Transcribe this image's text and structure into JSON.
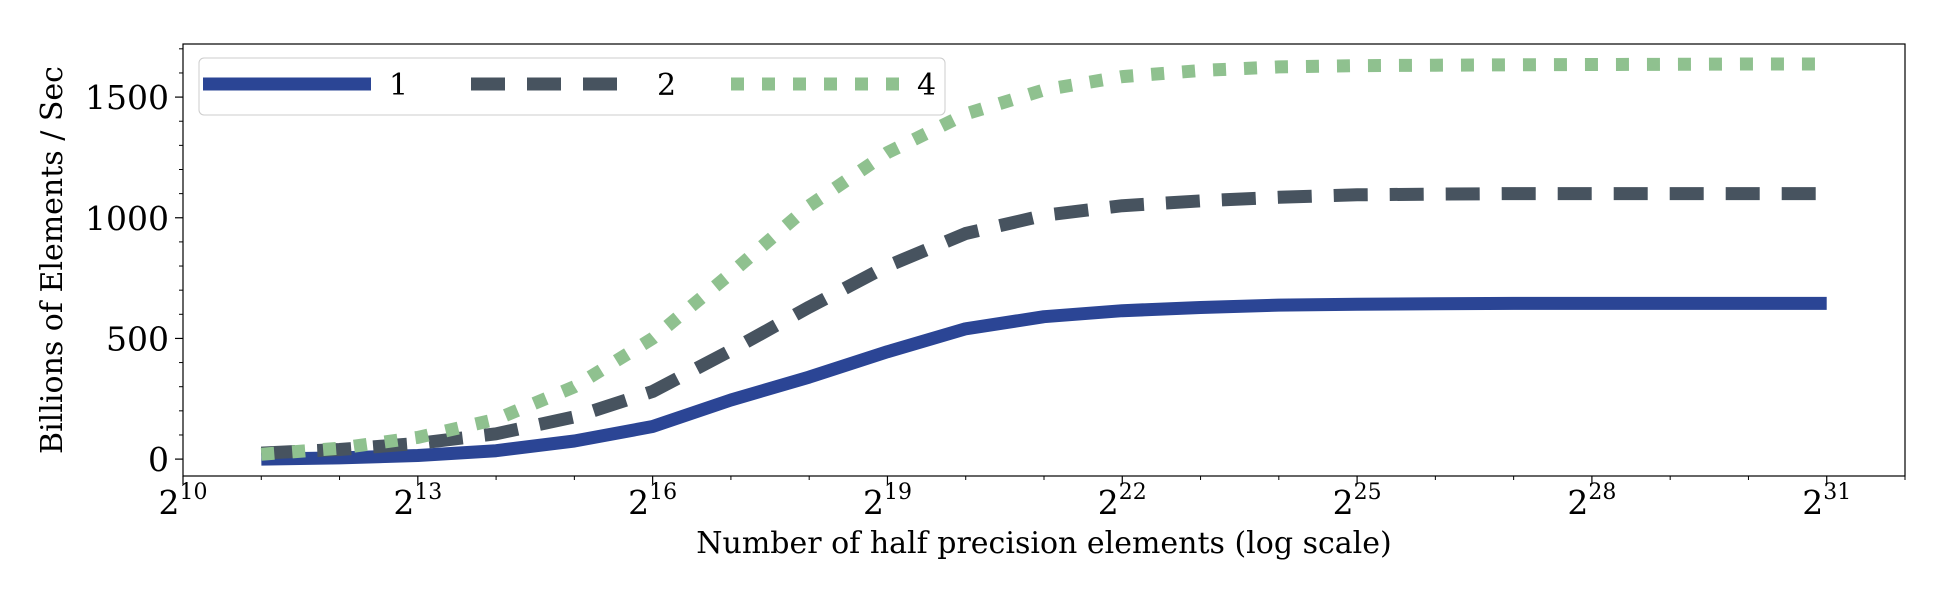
{
  "chart_data": {
    "type": "line",
    "xlabel": "Number of half precision elements (log scale)",
    "ylabel": "Billions of Elements / Sec",
    "x_scale": "log2",
    "xlim": [
      10,
      32
    ],
    "ylim": [
      -70,
      1720
    ],
    "x_ticks": [
      {
        "base": "2",
        "exp": "10",
        "value": 10
      },
      {
        "base": "2",
        "exp": "13",
        "value": 13
      },
      {
        "base": "2",
        "exp": "16",
        "value": 16
      },
      {
        "base": "2",
        "exp": "19",
        "value": 19
      },
      {
        "base": "2",
        "exp": "22",
        "value": 22
      },
      {
        "base": "2",
        "exp": "25",
        "value": 25
      },
      {
        "base": "2",
        "exp": "28",
        "value": 28
      },
      {
        "base": "2",
        "exp": "31",
        "value": 31
      }
    ],
    "y_ticks": [
      {
        "label": "0",
        "value": 0
      },
      {
        "label": "500",
        "value": 500
      },
      {
        "label": "1000",
        "value": 1000
      },
      {
        "label": "1500",
        "value": 1500
      }
    ],
    "grid": false,
    "legend": {
      "placement": "top-left",
      "columns": 3
    },
    "x": [
      11,
      12,
      13,
      14,
      15,
      16,
      17,
      18,
      19,
      20,
      21,
      22,
      23,
      24,
      25,
      26,
      27,
      28,
      29,
      30,
      31
    ],
    "series": [
      {
        "name": "1",
        "color": "#2b4595",
        "style": "solid",
        "values": [
          0,
          5,
          15,
          35,
          75,
          135,
          245,
          340,
          445,
          540,
          590,
          615,
          628,
          638,
          642,
          644,
          645,
          645,
          645,
          645,
          645
        ]
      },
      {
        "name": "2",
        "color": "#47535f",
        "style": "dashed",
        "values": [
          25,
          40,
          65,
          105,
          175,
          280,
          450,
          630,
          800,
          935,
          1010,
          1050,
          1070,
          1085,
          1095,
          1098,
          1100,
          1100,
          1100,
          1100,
          1100
        ]
      },
      {
        "name": "4",
        "color": "#8fc18f",
        "style": "dotted",
        "values": [
          20,
          45,
          90,
          165,
          300,
          500,
          770,
          1050,
          1270,
          1430,
          1530,
          1585,
          1610,
          1625,
          1630,
          1632,
          1634,
          1635,
          1636,
          1637,
          1637
        ]
      }
    ]
  }
}
